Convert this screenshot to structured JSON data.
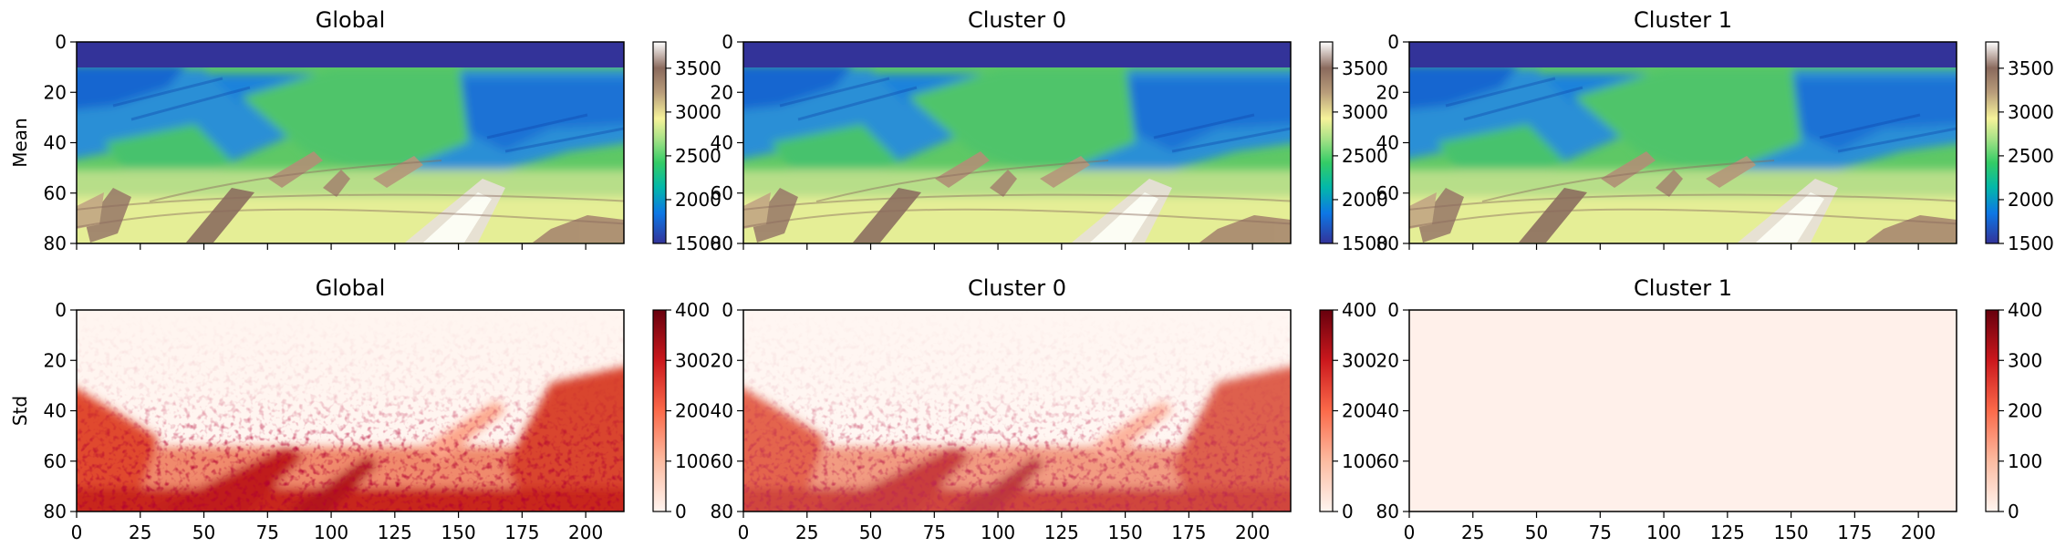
{
  "chart_data": [
    {
      "type": "heatmap",
      "title": "Global",
      "ylabel": "Mean",
      "xlim": [
        0,
        215
      ],
      "ylim": [
        80,
        0
      ],
      "yticks": [
        "0",
        "20",
        "40",
        "60",
        "80"
      ],
      "colormap": "terrain",
      "colorbar": {
        "range": [
          1500,
          3800
        ],
        "ticks": [
          "1500",
          "2000",
          "2500",
          "3000",
          "3500"
        ]
      },
      "x_tick_labels_visible": false
    },
    {
      "type": "heatmap",
      "title": "Cluster 0",
      "xlim": [
        0,
        215
      ],
      "ylim": [
        80,
        0
      ],
      "yticks": [
        "0",
        "20",
        "40",
        "60",
        "80"
      ],
      "colormap": "terrain",
      "colorbar": {
        "range": [
          1500,
          3800
        ],
        "ticks": [
          "1500",
          "2000",
          "2500",
          "3000",
          "3500"
        ]
      },
      "x_tick_labels_visible": false
    },
    {
      "type": "heatmap",
      "title": "Cluster 1",
      "xlim": [
        0,
        215
      ],
      "ylim": [
        80,
        0
      ],
      "yticks": [
        "0",
        "20",
        "40",
        "60",
        "80"
      ],
      "colormap": "terrain",
      "colorbar": {
        "range": [
          1500,
          3800
        ],
        "ticks": [
          "1500",
          "2000",
          "2500",
          "3000",
          "3500"
        ]
      },
      "x_tick_labels_visible": false
    },
    {
      "type": "heatmap",
      "title": "Global",
      "ylabel": "Std",
      "xlim": [
        0,
        215
      ],
      "ylim": [
        80,
        0
      ],
      "xticks": [
        "0",
        "25",
        "50",
        "75",
        "100",
        "125",
        "150",
        "175",
        "200"
      ],
      "yticks": [
        "0",
        "20",
        "40",
        "60",
        "80"
      ],
      "colormap": "Reds",
      "colorbar": {
        "range": [
          0,
          400
        ],
        "ticks": [
          "0",
          "100",
          "200",
          "300",
          "400"
        ]
      },
      "x_tick_labels_visible": true
    },
    {
      "type": "heatmap",
      "title": "Cluster 0",
      "xlim": [
        0,
        215
      ],
      "ylim": [
        80,
        0
      ],
      "xticks": [
        "0",
        "25",
        "50",
        "75",
        "100",
        "125",
        "150",
        "175",
        "200"
      ],
      "yticks": [
        "0",
        "20",
        "40",
        "60",
        "80"
      ],
      "colormap": "Reds",
      "colorbar": {
        "range": [
          0,
          400
        ],
        "ticks": [
          "0",
          "100",
          "200",
          "300",
          "400"
        ]
      },
      "x_tick_labels_visible": true
    },
    {
      "type": "heatmap",
      "title": "Cluster 1",
      "xlim": [
        0,
        215
      ],
      "ylim": [
        80,
        0
      ],
      "xticks": [
        "0",
        "25",
        "50",
        "75",
        "100",
        "125",
        "150",
        "175",
        "200"
      ],
      "yticks": [
        "0",
        "20",
        "40",
        "60",
        "80"
      ],
      "colormap": "Reds",
      "colorbar": {
        "range": [
          0,
          400
        ],
        "ticks": [
          "0",
          "100",
          "200",
          "300",
          "400"
        ]
      },
      "x_tick_labels_visible": true
    }
  ]
}
